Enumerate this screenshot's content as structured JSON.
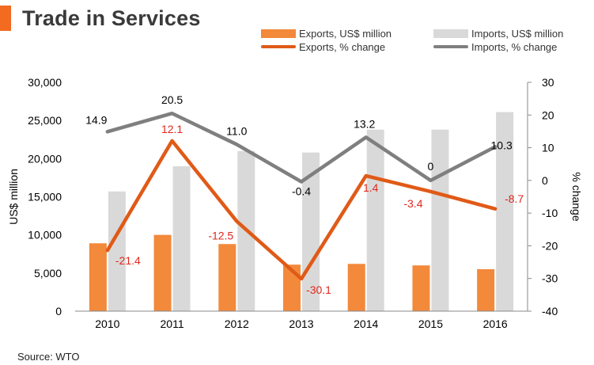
{
  "header": {
    "title": "Trade in Services"
  },
  "legend": {
    "exports_bar": "Exports, US$ million",
    "imports_bar": "Imports, US$ million",
    "exports_line": "Exports, % change",
    "imports_line": "Imports, % change"
  },
  "source": "Source: WTO",
  "colors": {
    "exports_bar": "#f3893b",
    "imports_bar": "#d9d9d9",
    "exports_line": "#e05a17",
    "imports_line": "#7f7f7f",
    "accent": "#f26b21",
    "label_red": "#e0281c"
  },
  "chart_data": {
    "type": "bar+line",
    "title": "Trade in Services",
    "categories": [
      "2010",
      "2011",
      "2012",
      "2013",
      "2014",
      "2015",
      "2016"
    ],
    "ylabel": "US$ million",
    "y2label": "% change",
    "ylim": [
      0,
      30000
    ],
    "y2lim": [
      -40,
      30
    ],
    "yticks": [
      "0",
      "5,000",
      "10,000",
      "15,000",
      "20,000",
      "25,000",
      "30,000"
    ],
    "y2ticks": [
      "-40",
      "-30",
      "-20",
      "-10",
      "0",
      "10",
      "20",
      "30"
    ],
    "bars": [
      {
        "name": "Exports, US$ million",
        "values": [
          8900,
          10000,
          8800,
          6100,
          6200,
          6000,
          5500
        ]
      },
      {
        "name": "Imports, US$ million",
        "values": [
          15700,
          19000,
          21000,
          20800,
          23800,
          23800,
          26100
        ]
      }
    ],
    "lines": [
      {
        "name": "Exports, % change",
        "values": [
          -21.4,
          12.1,
          -12.5,
          -30.1,
          1.4,
          -3.4,
          -8.7
        ],
        "labels": [
          "-21.4",
          "12.1",
          "-12.5",
          "-30.1",
          "1.4",
          "-3.4",
          "-8.7"
        ]
      },
      {
        "name": "Imports, % change",
        "values": [
          14.9,
          20.5,
          11.0,
          -0.4,
          13.2,
          0,
          10.3
        ],
        "labels": [
          "14.9",
          "20.5",
          "11.0",
          "-0.4",
          "13.2",
          "0",
          "10.3"
        ]
      }
    ]
  }
}
